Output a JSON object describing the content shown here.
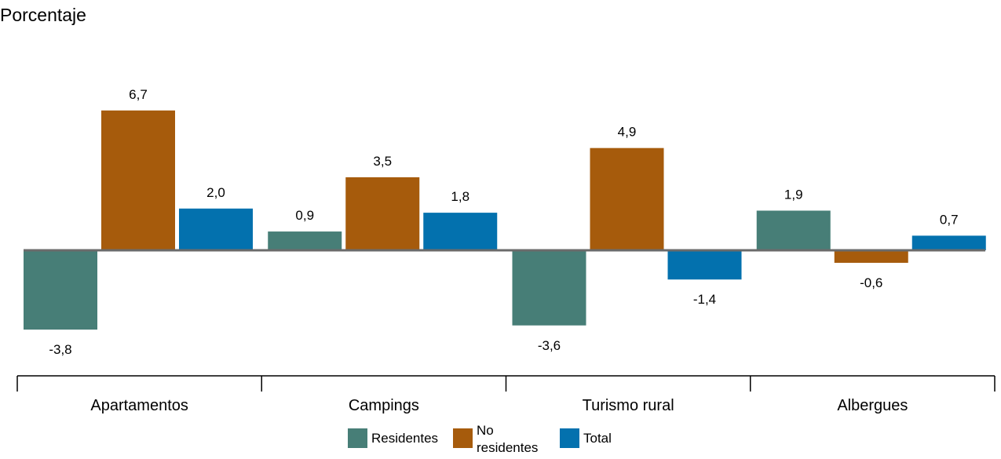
{
  "chart_data": {
    "type": "bar",
    "ylabel": "Porcentaje",
    "categories": [
      "Apartamentos",
      "Campings",
      "Turismo rural",
      "Albergues"
    ],
    "series": [
      {
        "name": "Residentes",
        "color": "#477e77",
        "values": [
          -3.8,
          0.9,
          -3.6,
          1.9
        ],
        "labels": [
          "-3,8",
          "0,9",
          "-3,6",
          "1,9"
        ]
      },
      {
        "name": "No residentes",
        "color": "#a65b0c",
        "values": [
          6.7,
          3.5,
          4.9,
          -0.6
        ],
        "labels": [
          "6,7",
          "3,5",
          "4,9",
          "-0,6"
        ]
      },
      {
        "name": "Total",
        "color": "#0371ae",
        "values": [
          2.0,
          1.8,
          -1.4,
          0.7
        ],
        "labels": [
          "2,0",
          "1,8",
          "-1,4",
          "0,7"
        ]
      }
    ],
    "legend_position": "bottom",
    "grid": false
  }
}
